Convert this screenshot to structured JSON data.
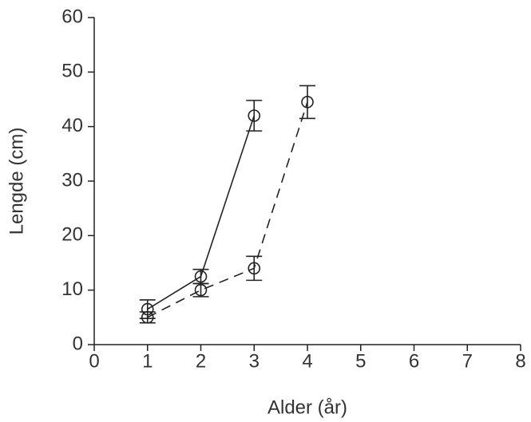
{
  "chart_data": {
    "type": "line",
    "xlabel": "Alder (år)",
    "ylabel": "Lengde (cm)",
    "xlim": [
      0,
      8
    ],
    "xticks": [
      0,
      1,
      2,
      3,
      4,
      5,
      6,
      7,
      8
    ],
    "ylim": [
      0,
      60
    ],
    "yticks": [
      0,
      10,
      20,
      30,
      40,
      50,
      60
    ],
    "grid": false,
    "series": [
      {
        "color": "#222222",
        "linestyle": "solid",
        "x": [
          1,
          2,
          3
        ],
        "values": [
          6.5,
          12.5,
          42
        ],
        "errors": [
          1.7,
          1.3,
          2.8
        ]
      },
      {
        "color": "#222222",
        "linestyle": "dashed",
        "x": [
          1,
          2,
          3,
          4
        ],
        "values": [
          5,
          10,
          14,
          44.5
        ],
        "errors": [
          1,
          1.2,
          2.2,
          3
        ]
      }
    ]
  }
}
